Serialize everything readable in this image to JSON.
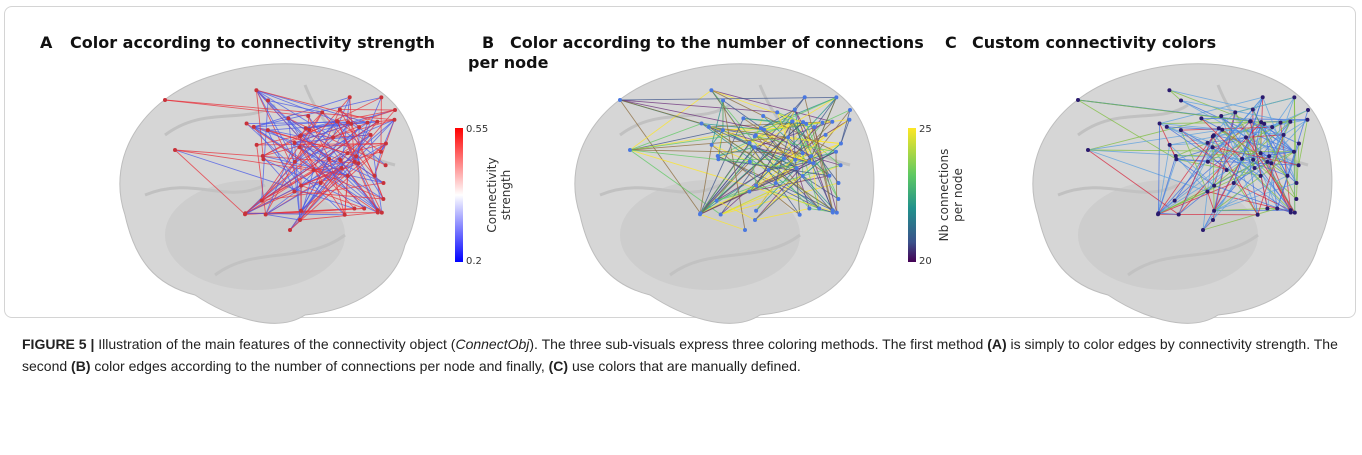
{
  "panels": [
    {
      "letter": "A",
      "title": "Color according to connectivity strength",
      "colorbar": {
        "label_lines": [
          "Connectivity",
          "strength"
        ],
        "max": "0.55",
        "min": "0.2"
      }
    },
    {
      "letter": "B",
      "title": "Color according to the number of connections per node",
      "colorbar": {
        "label_lines": [
          "Nb connections",
          "per node"
        ],
        "max": "25",
        "min": "20"
      }
    },
    {
      "letter": "C",
      "title": "Custom connectivity colors"
    }
  ],
  "caption": {
    "label": "FIGURE 5 |",
    "parts": [
      " Illustration of the main features of the connectivity object (",
      "ConnectObj",
      "). The three sub-visuals express three coloring methods. The first method ",
      "(A)",
      " is simply to color edges by connectivity strength. The second ",
      "(B)",
      " color edges according to the number of connections per node and finally, ",
      "(C)",
      " use colors that are manually defined."
    ]
  }
}
